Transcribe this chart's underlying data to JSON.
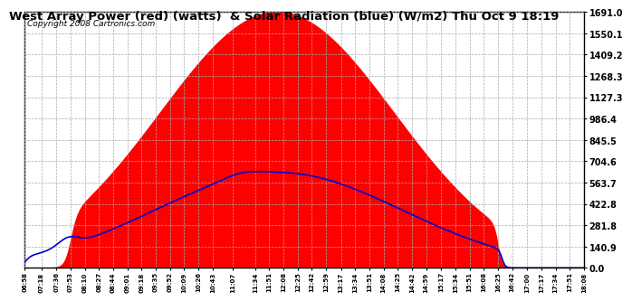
{
  "title": "West Array Power (red) (watts)  & Solar Radiation (blue) (W/m2) Thu Oct 9 18:19",
  "copyright": "Copyright 2008 Cartronics.com",
  "bg_color": "#ffffff",
  "plot_bg_color": "#ffffff",
  "grid_color": "#cccccc",
  "x_labels": [
    "06:58",
    "07:18",
    "07:36",
    "07:53",
    "08:10",
    "08:27",
    "08:44",
    "09:01",
    "09:18",
    "09:35",
    "09:52",
    "10:09",
    "10:26",
    "10:43",
    "11:07",
    "11:34",
    "11:51",
    "12:08",
    "12:25",
    "12:42",
    "12:59",
    "13:17",
    "13:34",
    "13:51",
    "14:08",
    "14:25",
    "14:42",
    "14:59",
    "15:17",
    "15:34",
    "15:51",
    "16:08",
    "16:25",
    "16:42",
    "17:00",
    "17:17",
    "17:34",
    "17:51",
    "18:08"
  ],
  "yticks": [
    0.0,
    140.9,
    281.8,
    422.8,
    563.7,
    704.6,
    845.5,
    986.4,
    1127.3,
    1268.3,
    1409.2,
    1550.1,
    1691.0
  ],
  "ymax": 1691.0,
  "ymin": 0.0,
  "red_color": "#ff0000",
  "blue_color": "#0000cc",
  "title_fontsize": 9.5,
  "copyright_fontsize": 6.5
}
